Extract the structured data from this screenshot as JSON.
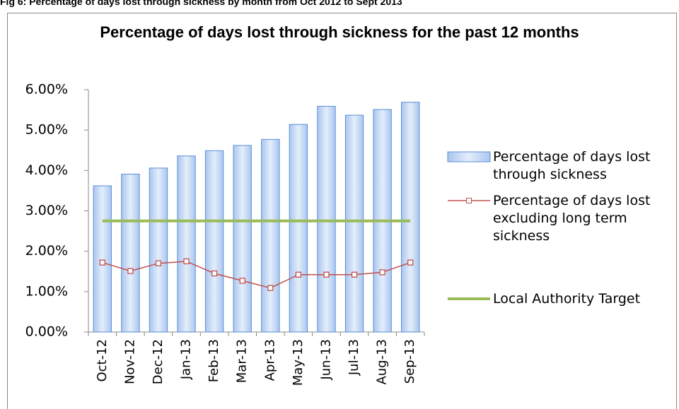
{
  "caption": "Fig 6: Percentage of days lost through sickness by month from Oct 2012 to Sept 2013",
  "chart_data": {
    "type": "bar",
    "title": "Percentage of days lost through sickness for the past 12 months",
    "categories": [
      "Oct-12",
      "Nov-12",
      "Dec-12",
      "Jan-13",
      "Feb-13",
      "Mar-13",
      "Apr-13",
      "May-13",
      "Jun-13",
      "Jul-13",
      "Aug-13",
      "Sep-13"
    ],
    "series": [
      {
        "name": "Percentage of days lost through sickness",
        "type": "bar",
        "color": "#5b8fd6",
        "values": [
          3.62,
          3.91,
          4.06,
          4.36,
          4.49,
          4.62,
          4.77,
          5.14,
          5.59,
          5.37,
          5.51,
          5.69
        ]
      },
      {
        "name": "Percentage of days lost excluding long term sickness",
        "type": "line",
        "color": "#c0504d",
        "values": [
          1.72,
          1.51,
          1.7,
          1.75,
          1.45,
          1.27,
          1.09,
          1.42,
          1.42,
          1.42,
          1.48,
          1.72
        ]
      },
      {
        "name": "Local Authority Target",
        "type": "line",
        "marker": false,
        "color": "#9bbb59",
        "values": [
          2.75,
          2.75,
          2.75,
          2.75,
          2.75,
          2.75,
          2.75,
          2.75,
          2.75,
          2.75,
          2.75,
          2.75
        ]
      }
    ],
    "ylim": [
      0,
      6
    ],
    "yticks": [
      {
        "value": 0,
        "label": "0.00%"
      },
      {
        "value": 1,
        "label": "1.00%"
      },
      {
        "value": 2,
        "label": "2.00%"
      },
      {
        "value": 3,
        "label": "3.00%"
      },
      {
        "value": 4,
        "label": "4.00%"
      },
      {
        "value": 5,
        "label": "5.00%"
      },
      {
        "value": 6,
        "label": "6.00%"
      }
    ],
    "grid": false,
    "legend": "right"
  }
}
